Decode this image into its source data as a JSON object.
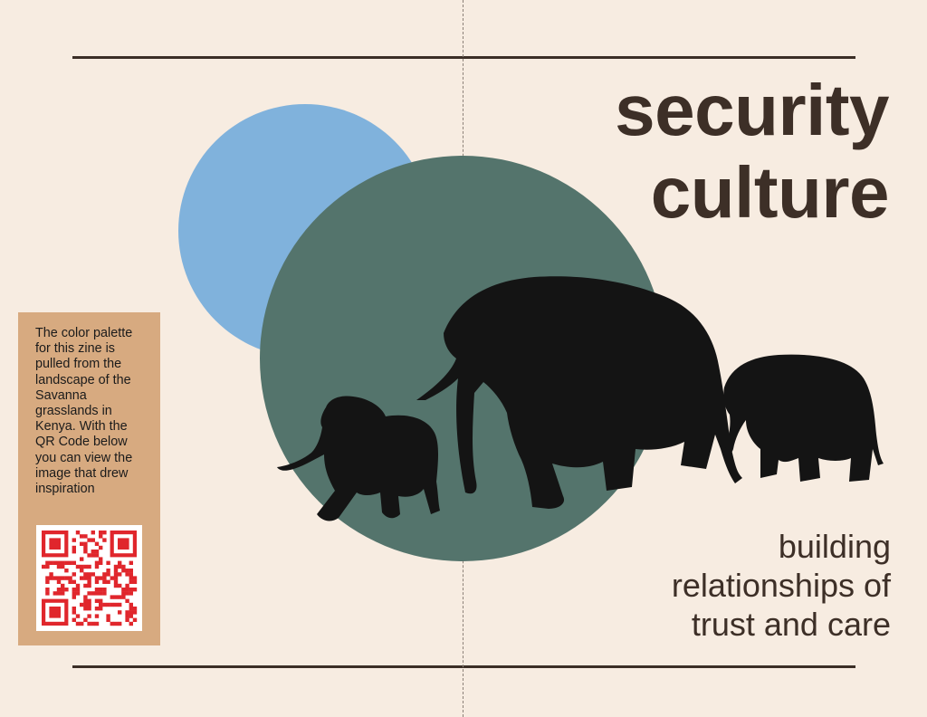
{
  "title": {
    "line1": "security",
    "line2": "culture"
  },
  "subtitle": {
    "line1": "building",
    "line2": "relationships of",
    "line3": "trust and care"
  },
  "note": {
    "text": "The color palette for this zine is pulled from the landscape of the Savanna grasslands in Kenya. With the QR Code below you can view the image that drew inspiration"
  },
  "colors": {
    "background": "#f7ece1",
    "sky_blue": "#80b2dc",
    "teal_green": "#54746c",
    "tan": "#d7aa80",
    "dark_brown": "#3d2f27",
    "qr_red": "#e0262c",
    "elephant": "#141414"
  },
  "icons": {
    "elephants": "elephant-family-silhouette",
    "qr": "qr-code-icon"
  }
}
